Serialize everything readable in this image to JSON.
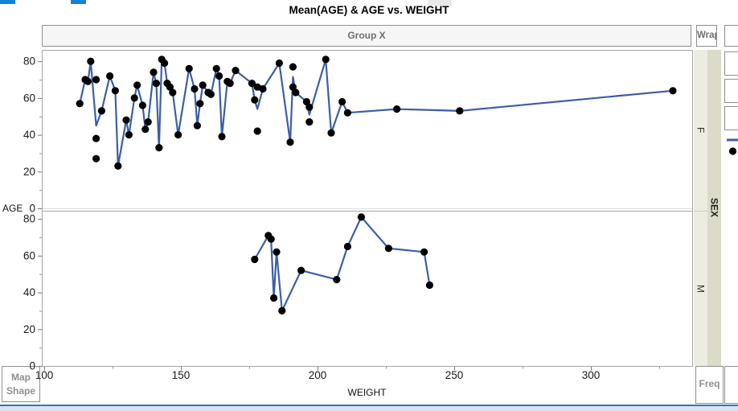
{
  "title": "Mean(AGE) & AGE vs. WEIGHT",
  "header": {
    "group_x": "Group X",
    "wrap": "Wrap"
  },
  "strips": {
    "sex": "SEX",
    "female": "F",
    "male": "M"
  },
  "zones": {
    "map_shape_lines": [
      "Map",
      "Shape"
    ],
    "freq": "Freq"
  },
  "colors": {
    "mean_line": "#3A5FA8",
    "marker": "#000000",
    "strip_light": "#ECECE0",
    "strip_dark": "#DBDBC7",
    "panel_border": "#A6A6A6",
    "box_border": "#8F8F8F",
    "header_text": "#6F6F6F",
    "top_accent": "#1581D2",
    "statusbar_fill": "#D9E4F1",
    "statusbar_line": "#3F6EBC"
  },
  "chart_data": {
    "type": "scatter",
    "title": "Mean(AGE) & AGE vs. WEIGHT",
    "xlabel": "WEIGHT",
    "ylabel": "AGE",
    "grid": "off",
    "line_rule": "blue line connects mean AGE at each WEIGHT value within a panel",
    "x_axis": {
      "min": 100,
      "max": 336,
      "major_ticks": [
        100,
        150,
        200,
        250,
        300
      ],
      "minor_ticks": [
        125,
        175,
        225,
        275,
        325
      ]
    },
    "y_axis": {
      "min": 0,
      "max": 86,
      "major_ticks": [
        0,
        20,
        40,
        60,
        80
      ],
      "minor_ticks": [
        10,
        30,
        50,
        70
      ]
    },
    "panels": [
      {
        "group": "F",
        "points": [
          [
            113,
            57
          ],
          [
            115,
            70
          ],
          [
            116,
            69
          ],
          [
            117,
            80
          ],
          [
            119,
            70
          ],
          [
            119,
            38
          ],
          [
            119,
            27
          ],
          [
            121,
            53
          ],
          [
            124,
            72
          ],
          [
            126,
            64
          ],
          [
            127,
            23
          ],
          [
            130,
            48
          ],
          [
            131,
            40
          ],
          [
            133,
            60
          ],
          [
            134,
            67
          ],
          [
            136,
            56
          ],
          [
            137,
            43
          ],
          [
            138,
            47
          ],
          [
            140,
            74
          ],
          [
            141,
            68
          ],
          [
            142,
            33
          ],
          [
            143,
            81
          ],
          [
            144,
            79
          ],
          [
            145,
            68
          ],
          [
            146,
            66
          ],
          [
            147,
            63
          ],
          [
            149,
            40
          ],
          [
            153,
            76
          ],
          [
            155,
            65
          ],
          [
            156,
            45
          ],
          [
            157,
            57
          ],
          [
            158,
            67
          ],
          [
            160,
            63
          ],
          [
            161,
            62
          ],
          [
            163,
            76
          ],
          [
            164,
            72
          ],
          [
            165,
            39
          ],
          [
            167,
            69
          ],
          [
            168,
            68
          ],
          [
            170,
            75
          ],
          [
            176,
            68
          ],
          [
            177,
            59
          ],
          [
            178,
            66
          ],
          [
            178,
            42
          ],
          [
            180,
            65
          ],
          [
            186,
            79
          ],
          [
            190,
            36
          ],
          [
            191,
            77
          ],
          [
            191,
            66
          ],
          [
            192,
            63
          ],
          [
            196,
            58
          ],
          [
            197,
            55
          ],
          [
            197,
            47
          ],
          [
            203,
            81
          ],
          [
            205,
            41
          ],
          [
            209,
            58
          ],
          [
            211,
            52
          ],
          [
            229,
            54
          ],
          [
            252,
            53
          ],
          [
            330,
            64
          ]
        ]
      },
      {
        "group": "M",
        "points": [
          [
            177,
            58
          ],
          [
            182,
            71
          ],
          [
            183,
            69
          ],
          [
            184,
            37
          ],
          [
            185,
            62
          ],
          [
            187,
            30
          ],
          [
            194,
            52
          ],
          [
            207,
            47
          ],
          [
            211,
            65
          ],
          [
            216,
            81
          ],
          [
            226,
            64
          ],
          [
            239,
            62
          ],
          [
            241,
            44
          ]
        ]
      }
    ],
    "legend": {
      "line_color": "#3A5FA8",
      "marker_color": "#000000",
      "position": "right"
    }
  }
}
